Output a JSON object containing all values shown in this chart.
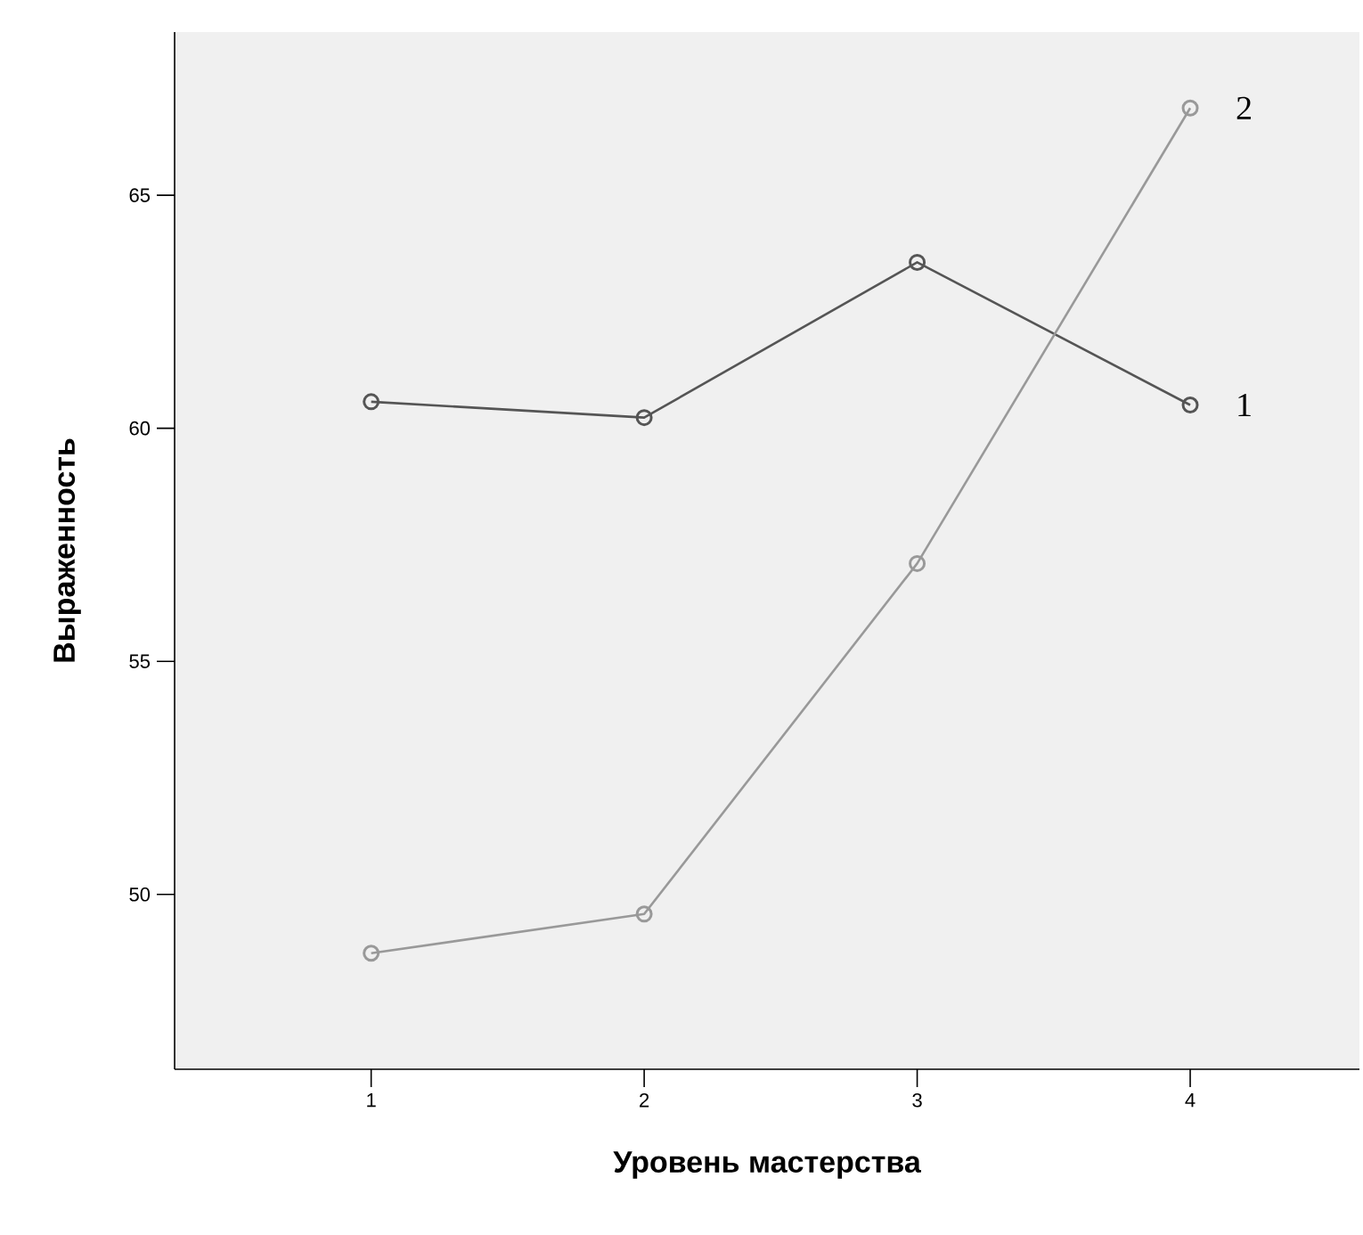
{
  "chart_data": {
    "type": "line",
    "xlabel": "Уровень мастерства",
    "ylabel": "Выраженность",
    "x": [
      1,
      2,
      3,
      4
    ],
    "xlim": [
      0.28,
      4.62
    ],
    "xticks": [
      1,
      2,
      3,
      4
    ],
    "ylim": [
      46.25,
      68.5
    ],
    "yticks": [
      50,
      55,
      60,
      65
    ],
    "marker": "circle",
    "series": [
      {
        "name": "1",
        "color": "#555555",
        "values": [
          60.57,
          60.23,
          63.56,
          60.5
        ]
      },
      {
        "name": "2",
        "color": "#999999",
        "values": [
          48.74,
          49.58,
          57.1,
          66.87
        ]
      }
    ]
  }
}
